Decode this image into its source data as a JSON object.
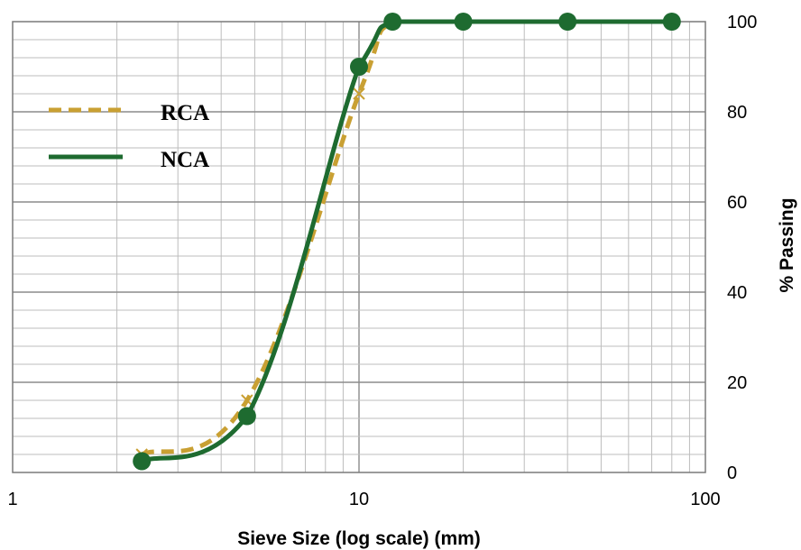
{
  "chart_data": {
    "type": "line",
    "xscale": "log",
    "xlim": [
      1,
      100
    ],
    "ylim": [
      0,
      100
    ],
    "xlabel": "Sieve Size (log scale) (mm)",
    "ylabel": "% Passing",
    "x_ticks": [
      "1",
      "10",
      "100"
    ],
    "y_ticks": [
      "0",
      "20",
      "40",
      "60",
      "80",
      "100"
    ],
    "grid": true,
    "legend_position": "upper-left",
    "series": [
      {
        "name": "RCA",
        "color": "#C9A033",
        "style": "dashed",
        "x": [
          2.36,
          4.75,
          10,
          12.5,
          20,
          40,
          80
        ],
        "y": [
          4,
          16,
          84,
          100,
          100,
          100,
          100
        ]
      },
      {
        "name": "NCA",
        "color": "#1E6B30",
        "style": "solid",
        "markers": true,
        "x": [
          2.36,
          4.75,
          10,
          12.5,
          20,
          40,
          80
        ],
        "y": [
          2.5,
          12.5,
          90,
          100,
          100,
          100,
          100
        ]
      }
    ]
  }
}
